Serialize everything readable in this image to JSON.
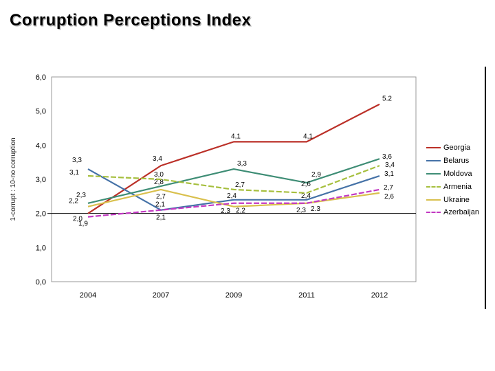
{
  "slide": {
    "title": "Corruption Perceptions Index"
  },
  "chart_data": {
    "type": "line",
    "title": "Corruption Perceptions Index",
    "xlabel": "",
    "ylabel": "1-corrupt : 10-no corruption",
    "categories": [
      "2004",
      "2007",
      "2009",
      "2011",
      "2012"
    ],
    "ylim": [
      0,
      6
    ],
    "ytick_step": 1,
    "ytick_labels": [
      "0,0",
      "1,0",
      "2,0",
      "3,0",
      "4,0",
      "5,0",
      "6,0"
    ],
    "axis_cross_value": 2,
    "grid": false,
    "legend_position": "right",
    "series": [
      {
        "name": "Georgia",
        "color": "#bb3028",
        "style": "solid",
        "values": [
          2.0,
          3.4,
          4.1,
          4.1,
          5.2
        ],
        "point_labels": [
          "2,0",
          "3,4",
          "4,1",
          "4,1",
          "5.2"
        ],
        "label_offsets": [
          [
            -15,
            11
          ],
          [
            -5,
            -7
          ],
          [
            3,
            -5
          ],
          [
            2,
            -5
          ],
          [
            11,
            -5
          ]
        ]
      },
      {
        "name": "Belarus",
        "color": "#4572a7",
        "style": "solid",
        "values": [
          3.3,
          2.1,
          2.4,
          2.4,
          3.1
        ],
        "point_labels": [
          "3,3",
          "2,1",
          "2,4",
          "2,4",
          "3,1"
        ],
        "label_offsets": [
          [
            -16,
            -10
          ],
          [
            -1,
            -5
          ],
          [
            -3,
            -3
          ],
          [
            -1,
            -3
          ],
          [
            14,
            0
          ]
        ]
      },
      {
        "name": "Moldova",
        "color": "#3e8d75",
        "style": "solid",
        "values": [
          2.3,
          2.8,
          3.3,
          2.9,
          3.6
        ],
        "point_labels": [
          "2,3",
          "2,8",
          "3,3",
          "2,9",
          "3,6"
        ],
        "label_offsets": [
          [
            -10,
            -9
          ],
          [
            -3,
            -3
          ],
          [
            12,
            -5
          ],
          [
            14,
            -9
          ],
          [
            11,
            0
          ]
        ]
      },
      {
        "name": "Armenia",
        "color": "#a6bf3e",
        "style": "dashed",
        "values": [
          3.1,
          3.0,
          2.7,
          2.6,
          3.4
        ],
        "point_labels": [
          "3,1",
          "3,0",
          "2,7",
          "2,6",
          "3,4"
        ],
        "label_offsets": [
          [
            -20,
            -2
          ],
          [
            -3,
            -4
          ],
          [
            9,
            -4
          ],
          [
            -1,
            -10
          ],
          [
            15,
            2
          ]
        ]
      },
      {
        "name": "Ukraine",
        "color": "#d9c04d",
        "style": "solid",
        "values": [
          2.2,
          2.7,
          2.2,
          2.3,
          2.6
        ],
        "point_labels": [
          "2,2",
          "2,7",
          "2,2",
          "2,3",
          "2,6"
        ],
        "label_offsets": [
          [
            -21,
            -5
          ],
          [
            0,
            13
          ],
          [
            10,
            9
          ],
          [
            -8,
            13
          ],
          [
            14,
            8
          ]
        ]
      },
      {
        "name": "Azerbaijan",
        "color": "#c238c2",
        "style": "dashed",
        "values": [
          1.9,
          2.1,
          2.3,
          2.3,
          2.7
        ],
        "point_labels": [
          "1,9",
          "2,1",
          "2,3",
          "2.3",
          "2,7"
        ],
        "label_offsets": [
          [
            -7,
            13
          ],
          [
            0,
            14
          ],
          [
            -12,
            14
          ],
          [
            13,
            11
          ],
          [
            13,
            0
          ]
        ]
      }
    ]
  }
}
